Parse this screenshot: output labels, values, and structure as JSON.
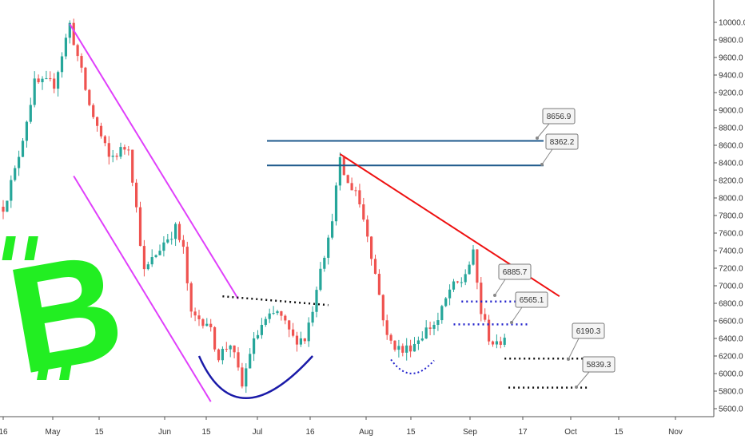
{
  "chart_data": {
    "type": "candlestick",
    "instrument_logo": "bitcoin-logo",
    "colors": {
      "up": "#26a69a",
      "down": "#ef5350",
      "channel": "#e040fb",
      "resistance": "#ee1111",
      "horizontal_levels": "#1e5a8c",
      "cup": "#1a1aa8",
      "neckline": "#111111",
      "support_dots": "#2222cc",
      "bitcoin_logo": "#22ee22"
    },
    "y_axis": {
      "min": 5600,
      "max": 10000,
      "ticks": [
        5600,
        5800,
        6000,
        6200,
        6400,
        6600,
        6800,
        7000,
        7200,
        7400,
        7600,
        7800,
        8000,
        8200,
        8400,
        8600,
        8800,
        9000,
        9200,
        9400,
        9600,
        9800,
        10000
      ],
      "tick_labels": [
        "5600.0",
        "5800.0",
        "6000.0",
        "6200.0",
        "6400.0",
        "6600.0",
        "6800.0",
        "7000.0",
        "7200.0",
        "7400.0",
        "7600.0",
        "7800.0",
        "8000.0",
        "8200.0",
        "8400.0",
        "8600.0",
        "8800.0",
        "9000.0",
        "9200.0",
        "9400.0",
        "9600.0",
        "9800.0",
        "10000.0"
      ]
    },
    "x_axis": {
      "tick_labels": [
        "16",
        "May",
        "15",
        "Jun",
        "15",
        "Jul",
        "16",
        "Aug",
        "15",
        "Sep",
        "17",
        "Oct",
        "15",
        "Nov"
      ]
    },
    "key_points": [
      {
        "t": 0,
        "price": 7900
      },
      {
        "t": 3,
        "price": 8300
      },
      {
        "t": 8,
        "price": 9300
      },
      {
        "t": 13,
        "price": 9300
      },
      {
        "t": 17,
        "price": 9980
      },
      {
        "t": 22,
        "price": 9050
      },
      {
        "t": 27,
        "price": 8450
      },
      {
        "t": 32,
        "price": 8600
      },
      {
        "t": 36,
        "price": 7150
      },
      {
        "t": 41,
        "price": 7500
      },
      {
        "t": 44,
        "price": 7650
      },
      {
        "t": 46,
        "price": 7400
      },
      {
        "t": 48,
        "price": 6650
      },
      {
        "t": 52,
        "price": 6600
      },
      {
        "t": 55,
        "price": 6200
      },
      {
        "t": 58,
        "price": 6350
      },
      {
        "t": 61,
        "price": 5850
      },
      {
        "t": 63,
        "price": 6250
      },
      {
        "t": 66,
        "price": 6550
      },
      {
        "t": 70,
        "price": 6700
      },
      {
        "t": 74,
        "price": 6400
      },
      {
        "t": 77,
        "price": 6400
      },
      {
        "t": 79,
        "price": 6750
      },
      {
        "t": 81,
        "price": 7250
      },
      {
        "t": 83,
        "price": 7500
      },
      {
        "t": 86,
        "price": 8400
      },
      {
        "t": 88,
        "price": 8150
      },
      {
        "t": 90,
        "price": 8100
      },
      {
        "t": 93,
        "price": 7600
      },
      {
        "t": 96,
        "price": 6900
      },
      {
        "t": 98,
        "price": 6400
      },
      {
        "t": 102,
        "price": 6250
      },
      {
        "t": 105,
        "price": 6350
      },
      {
        "t": 108,
        "price": 6500
      },
      {
        "t": 111,
        "price": 6600
      },
      {
        "t": 114,
        "price": 6950
      },
      {
        "t": 117,
        "price": 7050
      },
      {
        "t": 120,
        "price": 7350
      },
      {
        "t": 122,
        "price": 6700
      },
      {
        "t": 124,
        "price": 6420
      },
      {
        "t": 126,
        "price": 6300
      },
      {
        "t": 128,
        "price": 6450
      }
    ],
    "price_labels": [
      "8656.9",
      "8362.2",
      "6885.7",
      "6565.1",
      "6190.3",
      "5839.3"
    ],
    "horizontal_levels": [
      8650,
      8370
    ],
    "channel_lines": [
      {
        "from": {
          "t": 17,
          "price": 9980
        },
        "to": {
          "t": 60,
          "price": 6850
        }
      },
      {
        "from": {
          "t": 18,
          "price": 8250
        },
        "to": {
          "t": 53,
          "price": 5680
        }
      }
    ],
    "resistance_line": {
      "from": {
        "t": 86,
        "price": 8500
      },
      "to": {
        "t": 142,
        "price": 6880
      }
    },
    "cup": {
      "from": {
        "t": 50,
        "price": 6200
      },
      "bottom": {
        "t": 62,
        "price": 5720
      },
      "to": {
        "t": 79,
        "price": 6200
      }
    },
    "neckline": {
      "from": {
        "t": 56,
        "price": 6880
      },
      "to": {
        "t": 83,
        "price": 6780
      }
    },
    "support_arc": {
      "from": {
        "t": 99,
        "price": 6160
      },
      "bottom": {
        "t": 104,
        "price": 6010
      },
      "to": {
        "t": 110,
        "price": 6150
      }
    },
    "dotted_levels": [
      {
        "from_t": 117,
        "to_t": 132,
        "price": 6820,
        "color": "support_dots"
      },
      {
        "from_t": 115,
        "to_t": 134,
        "price": 6560,
        "color": "support_dots"
      },
      {
        "from_t": 128,
        "to_t": 149,
        "price": 6170,
        "color": "neckline"
      },
      {
        "from_t": 129,
        "to_t": 149,
        "price": 5840,
        "color": "neckline"
      }
    ]
  }
}
